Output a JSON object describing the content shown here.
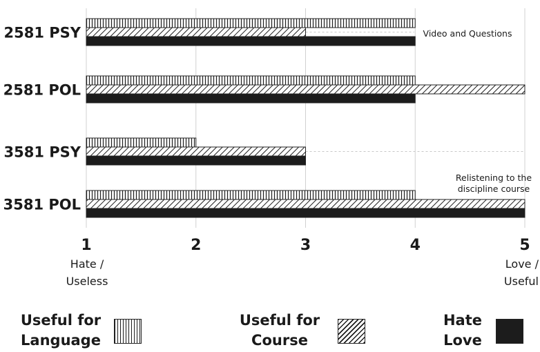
{
  "chart_data": {
    "type": "bar",
    "orientation": "horizontal",
    "categories": [
      "2581 PSY",
      "2581 POL",
      "3581 PSY",
      "3581 POL"
    ],
    "series": [
      {
        "name": "Useful for Language",
        "values": [
          4,
          4,
          2,
          4
        ],
        "pattern": "vertical-lines"
      },
      {
        "name": "Useful for Course",
        "values": [
          3,
          5,
          3,
          5
        ],
        "pattern": "diagonal-lines"
      },
      {
        "name": "Hate Love",
        "values": [
          4,
          4,
          3,
          5
        ],
        "pattern": "solid"
      }
    ],
    "xlim": [
      1,
      5
    ],
    "xticks": [
      "1",
      "2",
      "3",
      "4",
      "5"
    ],
    "xtick_low_label": [
      "Hate /",
      "Useless"
    ],
    "xtick_high_label": [
      "Love /",
      "Useful"
    ],
    "annotations": [
      {
        "category_index": 0,
        "lines": [
          "Video and Questions"
        ]
      },
      {
        "category_index": 3,
        "lines": [
          "Relistening to the",
          "discipline course"
        ]
      }
    ],
    "grid": true,
    "legend_position": "bottom",
    "colors": {
      "bar_fill": "#1c1c1c",
      "bar_outline": "#222222",
      "grid": "#d0d0d0"
    }
  },
  "legend": {
    "items": [
      {
        "line1": "Useful for",
        "line2": "Language"
      },
      {
        "line1": "Useful for",
        "line2": "Course"
      },
      {
        "line1": "Hate",
        "line2": "Love"
      }
    ]
  }
}
